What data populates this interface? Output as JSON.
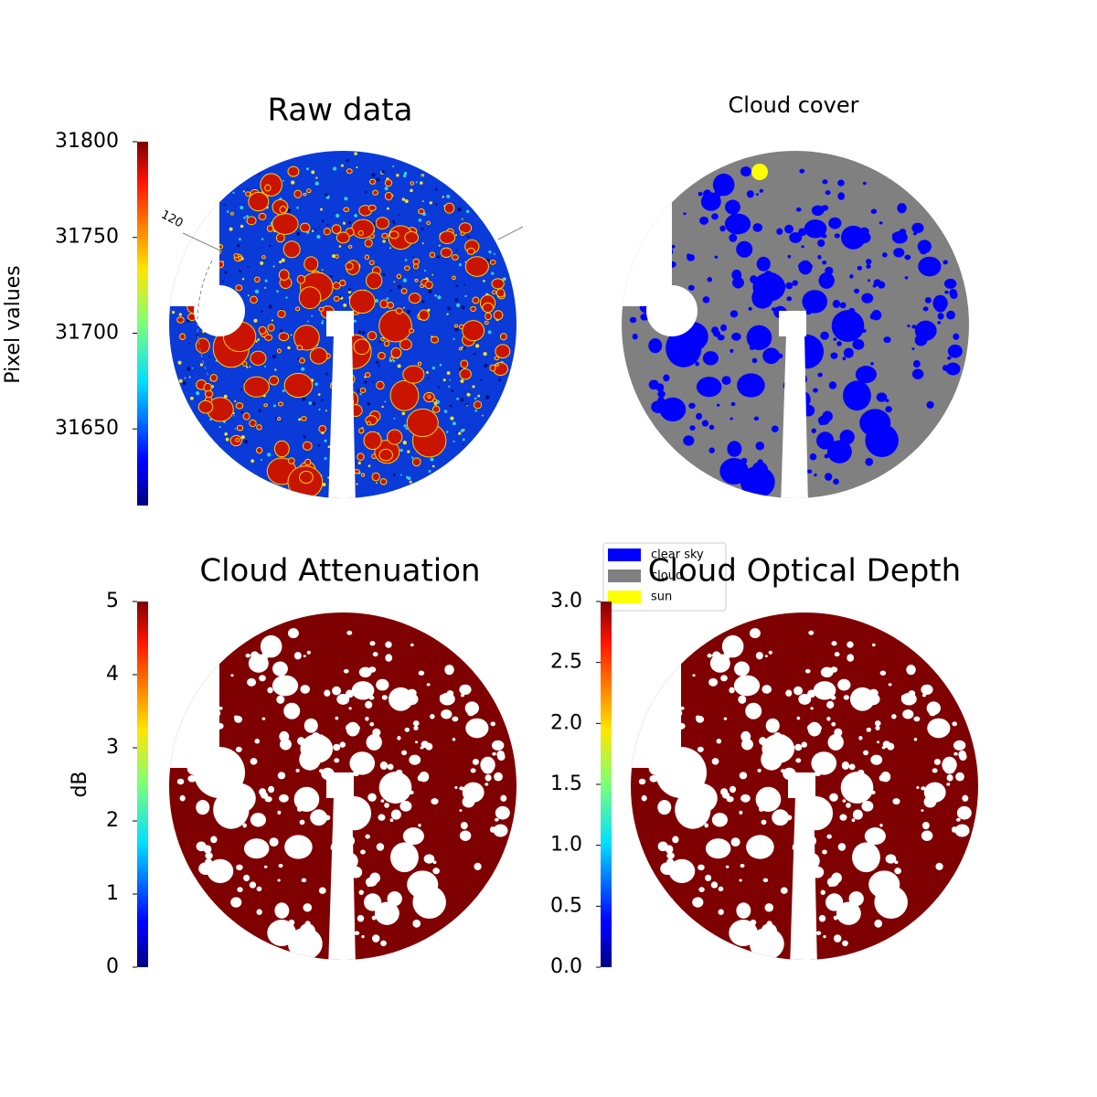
{
  "chart_data": [
    {
      "type": "image",
      "title": "Raw data",
      "cmap": "jet",
      "ylabel": "Pixel values",
      "ylim": [
        31610,
        31800
      ],
      "yticks": [
        31650,
        31700,
        31750,
        31800
      ],
      "annotations": [
        "120"
      ]
    },
    {
      "type": "mask",
      "title": "Cloud cover",
      "series": [
        {
          "name": "clear sky",
          "color": "#0000ff"
        },
        {
          "name": "cloud",
          "color": "#808080"
        },
        {
          "name": "sun",
          "color": "#ffff00"
        }
      ]
    },
    {
      "type": "image",
      "title": "Cloud Attenuation",
      "cmap": "jet",
      "ylabel": "dB",
      "ylim": [
        0,
        5
      ],
      "yticks": [
        0,
        1,
        2,
        3,
        4,
        5
      ]
    },
    {
      "type": "image",
      "title": "Cloud Optical Depth",
      "cmap": "jet",
      "ylim": [
        0,
        3
      ],
      "yticks": [
        {
          "value": 0,
          "label": "0.0"
        },
        {
          "value": 0.5,
          "label": "0.5"
        },
        {
          "value": 1,
          "label": "1.0"
        },
        {
          "value": 1.5,
          "label": "1.5"
        },
        {
          "value": 2,
          "label": "2.0"
        },
        {
          "value": 2.5,
          "label": "2.5"
        },
        {
          "value": 3,
          "label": "3.0"
        }
      ]
    }
  ]
}
